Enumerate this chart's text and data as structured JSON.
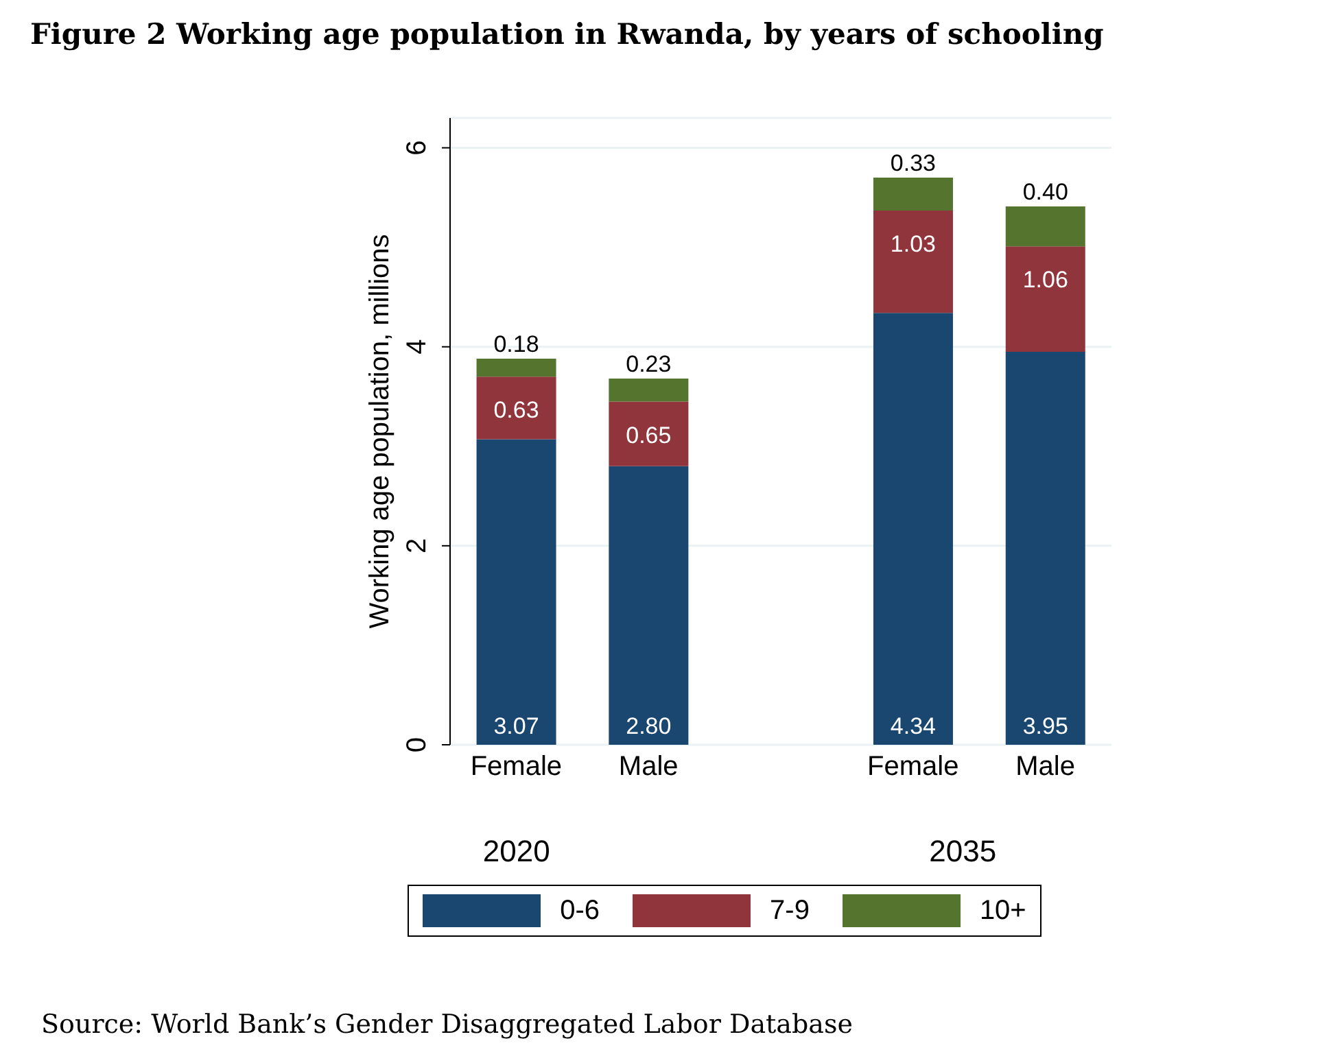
{
  "chart_data": {
    "type": "bar",
    "title": "Figure 2 Working age population in Rwanda, by years of schooling",
    "ylabel": "Working age population, millions",
    "categories": [
      "Female",
      "Male",
      null,
      "Female",
      "Male"
    ],
    "series": [
      {
        "name": "0-6",
        "color": "#1a476f",
        "values": [
          3.07,
          2.8,
          null,
          4.34,
          3.95
        ],
        "value_labels": [
          "3.07",
          "2.80",
          null,
          "4.34",
          "3.95"
        ]
      },
      {
        "name": "7-9",
        "color": "#90353b",
        "values": [
          0.63,
          0.65,
          null,
          1.03,
          1.06
        ],
        "value_labels": [
          "0.63",
          "0.65",
          null,
          "1.03",
          "1.06"
        ]
      },
      {
        "name": "10+",
        "color": "#55752f",
        "values": [
          0.18,
          0.23,
          null,
          0.33,
          0.4
        ],
        "value_labels": [
          "0.18",
          "0.23",
          null,
          "0.33",
          "0.40"
        ]
      }
    ],
    "stacked": true,
    "ylim": [
      0,
      6.3
    ],
    "yticks": [
      0,
      2,
      4,
      6
    ],
    "grid": "y",
    "legend": "bottom",
    "annotations": [
      "2020",
      "2035",
      "Source: World Bank’s Gender Disaggregated Labor Database"
    ]
  }
}
